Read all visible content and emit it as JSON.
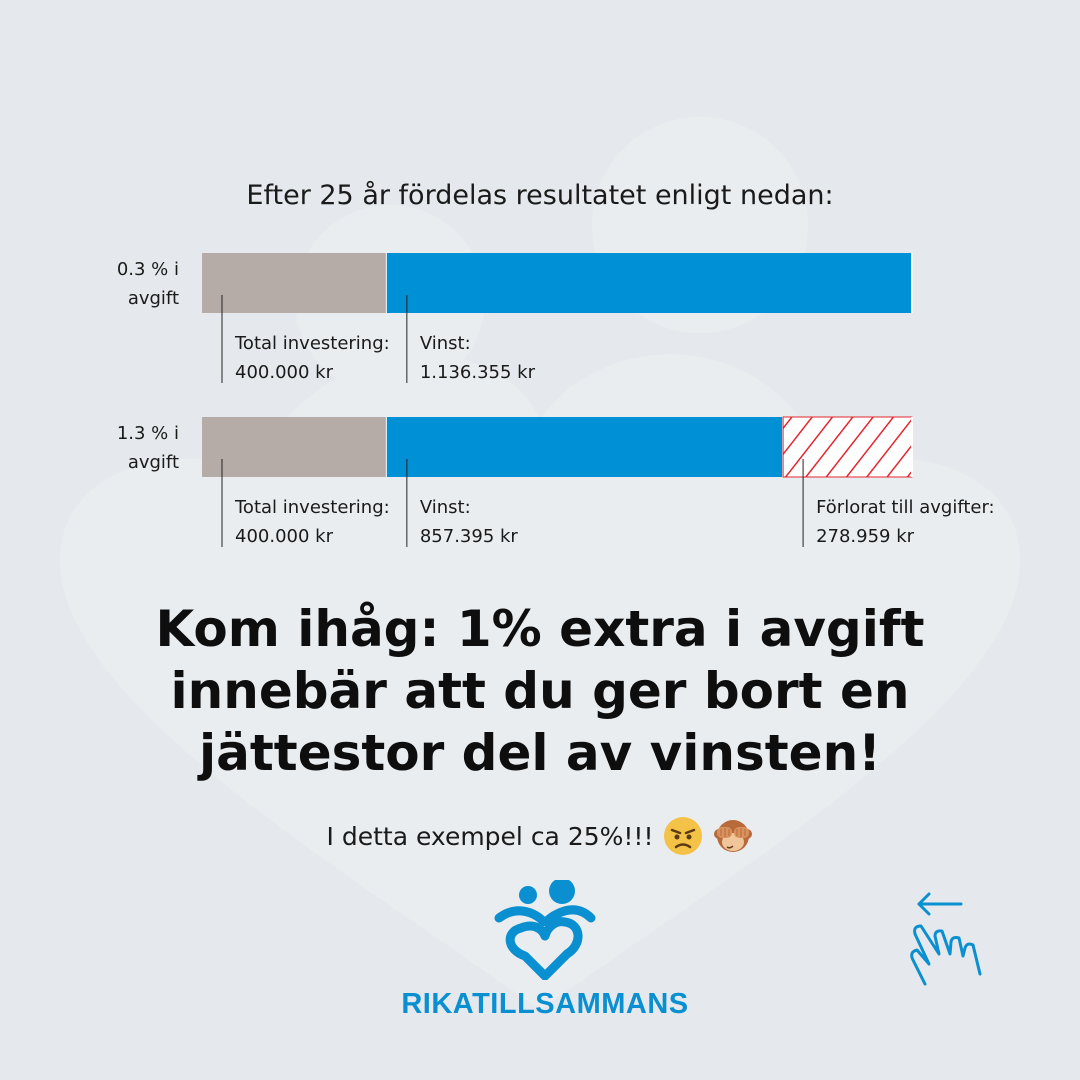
{
  "intro_text": "Efter 25 år fördelas resultatet enligt nedan:",
  "colors": {
    "investment": "#b5aca8",
    "profit": "#0090d6",
    "fees": "#e3262e",
    "brand": "#0a8fd1"
  },
  "chart_data": {
    "type": "bar",
    "orientation": "horizontal-stacked",
    "unit": "kr",
    "categories": [
      "0.3 % i avgift",
      "1.3 % i avgift"
    ],
    "series": [
      {
        "name": "Total investering",
        "values": [
          400000,
          400000
        ]
      },
      {
        "name": "Vinst",
        "values": [
          1136355,
          857395
        ]
      },
      {
        "name": "Förlorat till avgifter",
        "values": [
          0,
          278959
        ]
      }
    ],
    "rows": [
      {
        "label_lines": [
          "0.3 % i",
          "avgift"
        ],
        "segments": [
          {
            "key": "investment",
            "value": 400000,
            "title": "Total investering:",
            "amount": "400.000 kr"
          },
          {
            "key": "profit",
            "value": 1136355,
            "title": "Vinst:",
            "amount": "1.136.355 kr"
          }
        ]
      },
      {
        "label_lines": [
          "1.3 % i",
          "avgift"
        ],
        "segments": [
          {
            "key": "investment",
            "value": 400000,
            "title": "Total investering:",
            "amount": "400.000 kr"
          },
          {
            "key": "profit",
            "value": 857395,
            "title": "Vinst:",
            "amount": "857.395 kr"
          },
          {
            "key": "fees",
            "value": 278959,
            "title": "Förlorat till avgifter:",
            "amount": "278.959 kr"
          }
        ]
      }
    ]
  },
  "headline": "Kom ihåg: 1% extra i avgift innebär att du ger bort en jättestor del av vinsten!",
  "subline": "I detta exempel ca 25%!!!",
  "emojis": [
    "angry-face-icon",
    "see-no-evil-monkey-icon"
  ],
  "logo": {
    "icon": "family-heart-logo-icon",
    "text": "RIKATILLSAMMANS"
  },
  "swipe_icon": "swipe-left-hand-icon"
}
